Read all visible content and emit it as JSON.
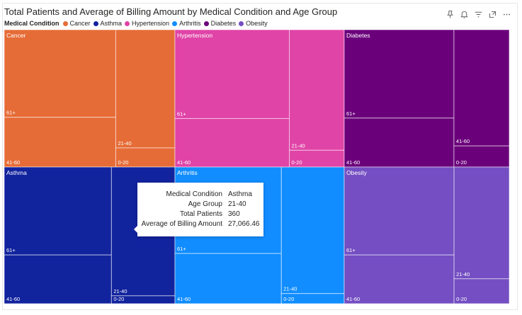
{
  "chart_data": {
    "type": "treemap",
    "title": "Total Patients and Average of Billing Amount by Medical Condition and Age Group",
    "legend": {
      "title": "Medical Condition",
      "placement": "top-left",
      "items": [
        {
          "label": "Cancer",
          "color": "#E66C37"
        },
        {
          "label": "Asthma",
          "color": "#12239E"
        },
        {
          "label": "Hypertension",
          "color": "#E044A7"
        },
        {
          "label": "Arthritis",
          "color": "#118DFF"
        },
        {
          "label": "Diabetes",
          "color": "#6B007B"
        },
        {
          "label": "Obesity",
          "color": "#744EC2"
        }
      ]
    },
    "groups": [
      {
        "name": "Cancer",
        "color": "#E66C37",
        "children": [
          {
            "age": "61+",
            "value": 405
          },
          {
            "age": "41-60",
            "value": 230
          },
          {
            "age": "21-40",
            "value": 290
          },
          {
            "age": "0-20",
            "value": 47
          }
        ]
      },
      {
        "name": "Hypertension",
        "color": "#E044A7",
        "children": [
          {
            "age": "61+",
            "value": 430
          },
          {
            "age": "41-60",
            "value": 235
          },
          {
            "age": "21-40",
            "value": 280
          },
          {
            "age": "0-20",
            "value": 39
          }
        ]
      },
      {
        "name": "Diabetes",
        "color": "#6B007B",
        "children": [
          {
            "age": "61+",
            "value": 415
          },
          {
            "age": "41-60",
            "value": 230
          },
          {
            "age": "41-60",
            "value": 275
          },
          {
            "age": "0-20",
            "value": 50
          }
        ]
      },
      {
        "name": "Asthma",
        "color": "#12239E",
        "children": [
          {
            "age": "61+",
            "value": 415
          },
          {
            "age": "41-60",
            "value": 230
          },
          {
            "age": "21-40",
            "value": 360
          },
          {
            "age": "0-20",
            "value": 22
          }
        ]
      },
      {
        "name": "Arthritis",
        "color": "#118DFF",
        "children": [
          {
            "age": "61+",
            "value": 405
          },
          {
            "age": "41-60",
            "value": 235
          },
          {
            "age": "21-40",
            "value": 350
          },
          {
            "age": "0-20",
            "value": 28
          }
        ]
      },
      {
        "name": "Obesity",
        "color": "#744EC2",
        "children": [
          {
            "age": "61+",
            "value": 415
          },
          {
            "age": "41-60",
            "value": 230
          },
          {
            "age": "21-40",
            "value": 265
          },
          {
            "age": "0-20",
            "value": 59
          }
        ]
      }
    ],
    "tooltip": {
      "rows": [
        {
          "label": "Medical Condition",
          "value": "Asthma"
        },
        {
          "label": "Age Group",
          "value": "21-40"
        },
        {
          "label": "Total Patients",
          "value": "360"
        },
        {
          "label": "Average of Billing Amount",
          "value": "27,066.46"
        }
      ]
    }
  },
  "toolbar": {
    "icons": [
      "pin-icon",
      "bell-icon",
      "filter-icon",
      "expand-icon",
      "more-icon"
    ]
  }
}
